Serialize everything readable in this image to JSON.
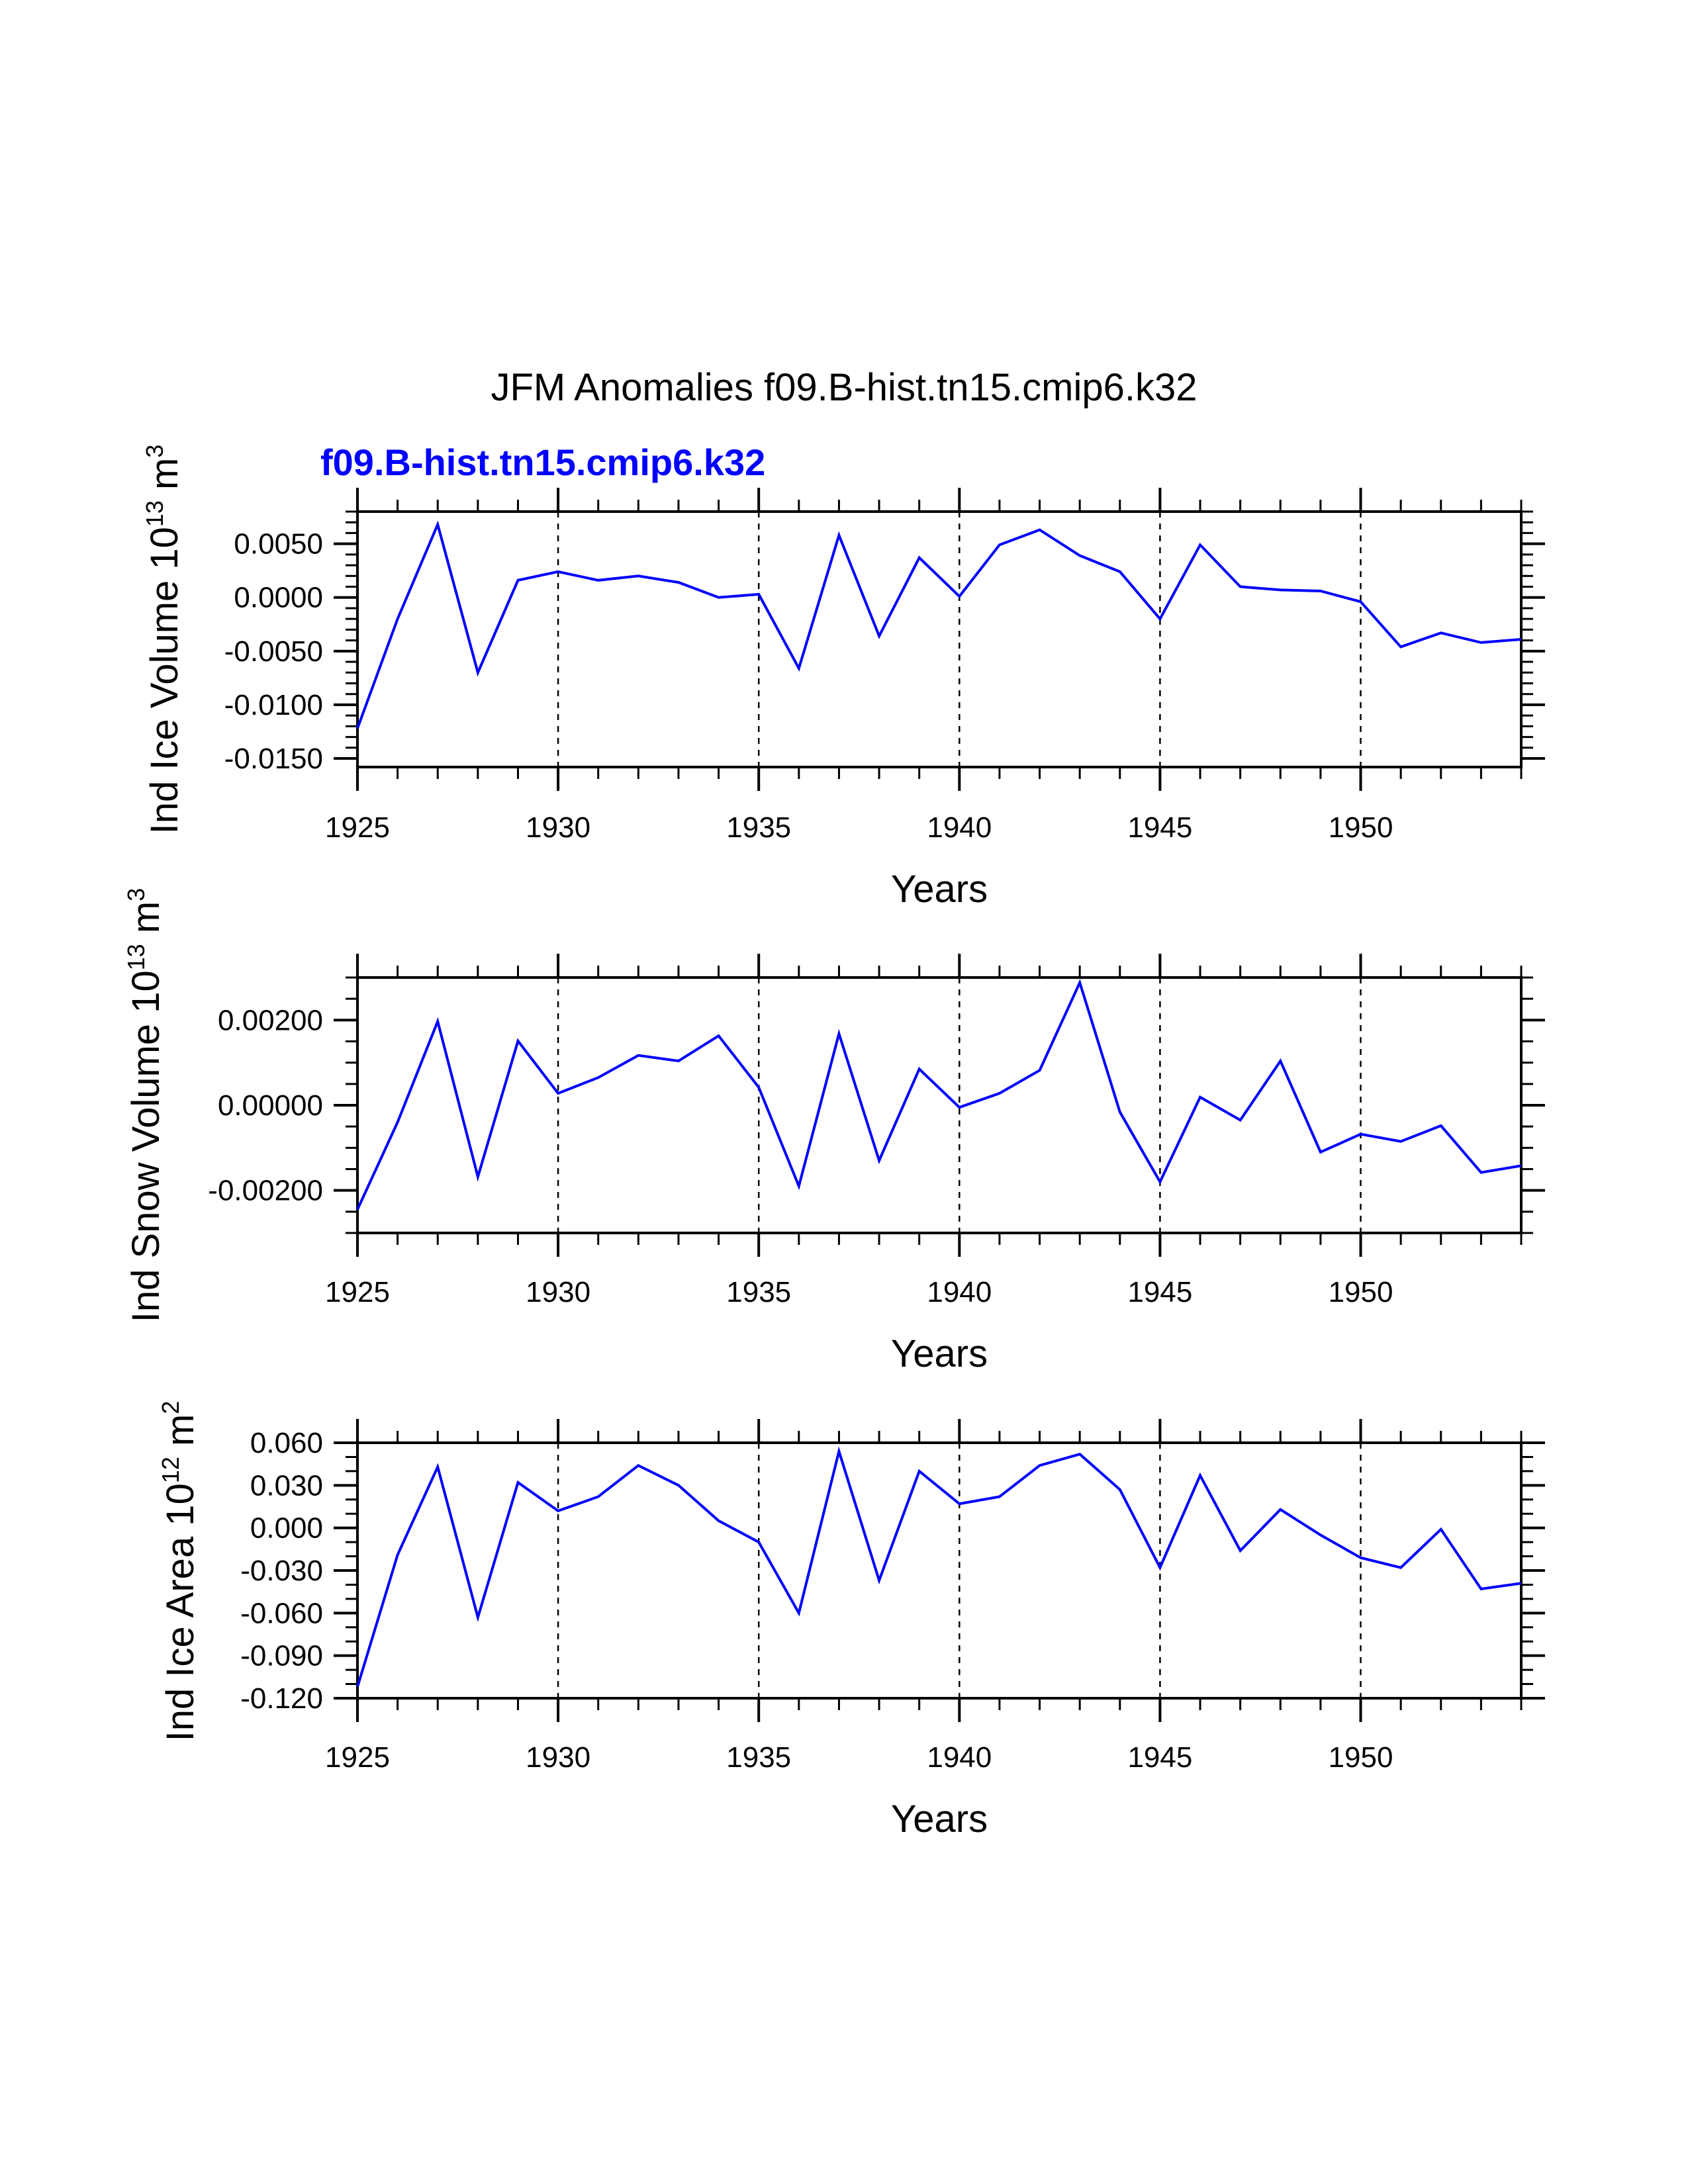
{
  "chart_data": {
    "title": "JFM Anomalies f09.B-hist.tn15.cmip6.k32",
    "series_label": "f09.B-hist.tn15.cmip6.k32",
    "line_color": "#0000ff",
    "panels": [
      {
        "type": "line",
        "ylabel_main": "Ind Ice Volume 10",
        "ylabel_sup1": "13",
        "ylabel_mid": " m",
        "ylabel_sup2": "3",
        "xlabel": "Years",
        "xlim": [
          1925,
          1954
        ],
        "ylim": [
          -0.0158,
          0.008
        ],
        "x_ticks": [
          1925,
          1930,
          1935,
          1940,
          1945,
          1950
        ],
        "y_ticks": [
          0.005,
          0.0,
          -0.005,
          -0.01,
          -0.015
        ],
        "y_tick_labels": [
          "0.0050",
          "0.0000",
          "-0.0050",
          "-0.0100",
          "-0.0150"
        ],
        "y_minor_step": 0.001,
        "x": [
          1925,
          1926,
          1927,
          1928,
          1929,
          1930,
          1931,
          1932,
          1933,
          1934,
          1935,
          1936,
          1937,
          1938,
          1939,
          1940,
          1941,
          1942,
          1943,
          1944,
          1945,
          1946,
          1947,
          1948,
          1949,
          1950,
          1951,
          1952,
          1953,
          1954
        ],
        "values": [
          -0.0122,
          -0.002,
          0.0068,
          -0.007,
          0.0016,
          0.0024,
          0.0016,
          0.002,
          0.0014,
          0.0,
          0.0003,
          -0.0066,
          0.0058,
          -0.0036,
          0.0037,
          0.0001,
          0.0049,
          0.0063,
          0.0039,
          0.0024,
          -0.002,
          0.0049,
          0.001,
          0.0007,
          0.0006,
          -0.0004,
          -0.0046,
          -0.0033,
          -0.0042,
          -0.0039
        ]
      },
      {
        "type": "line",
        "ylabel_main": "Ind Snow Volume 10",
        "ylabel_sup1": "13",
        "ylabel_mid": " m",
        "ylabel_sup2": "3",
        "xlabel": "Years",
        "xlim": [
          1925,
          1954
        ],
        "ylim": [
          -0.003,
          0.003
        ],
        "x_ticks": [
          1925,
          1930,
          1935,
          1940,
          1945,
          1950
        ],
        "y_ticks": [
          0.002,
          0.0,
          -0.002
        ],
        "y_tick_labels": [
          "0.00200",
          "0.00000",
          "-0.00200"
        ],
        "y_minor_step": 0.0005,
        "x": [
          1925,
          1926,
          1927,
          1928,
          1929,
          1930,
          1931,
          1932,
          1933,
          1934,
          1935,
          1936,
          1937,
          1938,
          1939,
          1940,
          1941,
          1942,
          1943,
          1944,
          1945,
          1946,
          1947,
          1948,
          1949,
          1950,
          1951,
          1952,
          1953,
          1954
        ],
        "values": [
          -0.00245,
          -0.0004,
          0.00197,
          -0.00168,
          0.00151,
          0.00028,
          0.00065,
          0.00117,
          0.00104,
          0.00163,
          0.00042,
          -0.0019,
          0.00168,
          -0.0013,
          0.00085,
          -5e-05,
          0.00028,
          0.00082,
          0.00288,
          -0.00016,
          -0.0018,
          0.00019,
          -0.00035,
          0.00104,
          -0.0011,
          -0.00068,
          -0.00085,
          -0.00048,
          -0.00158,
          -0.00142
        ]
      },
      {
        "type": "line",
        "ylabel_main": "Ind Ice Area 10",
        "ylabel_sup1": "12",
        "ylabel_mid": " m",
        "ylabel_sup2": "2",
        "xlabel": "Years",
        "xlim": [
          1925,
          1954
        ],
        "ylim": [
          -0.12,
          0.06
        ],
        "x_ticks": [
          1925,
          1930,
          1935,
          1940,
          1945,
          1950
        ],
        "y_ticks": [
          0.06,
          0.03,
          0.0,
          -0.03,
          -0.06,
          -0.09,
          -0.12
        ],
        "y_tick_labels": [
          "0.060",
          "0.030",
          "0.000",
          "-0.030",
          "-0.060",
          "-0.090",
          "-0.120"
        ],
        "y_minor_step": 0.01,
        "x": [
          1925,
          1926,
          1927,
          1928,
          1929,
          1930,
          1931,
          1932,
          1933,
          1934,
          1935,
          1936,
          1937,
          1938,
          1939,
          1940,
          1941,
          1942,
          1943,
          1944,
          1945,
          1946,
          1947,
          1948,
          1949,
          1950,
          1951,
          1952,
          1953,
          1954
        ],
        "values": [
          -0.112,
          -0.019,
          0.043,
          -0.063,
          0.032,
          0.012,
          0.022,
          0.044,
          0.03,
          0.005,
          -0.01,
          -0.06,
          0.054,
          -0.037,
          0.04,
          0.017,
          0.022,
          0.044,
          0.052,
          0.027,
          -0.028,
          0.037,
          -0.016,
          0.013,
          -0.005,
          -0.021,
          -0.028,
          -0.001,
          -0.043,
          -0.039
        ]
      }
    ]
  }
}
